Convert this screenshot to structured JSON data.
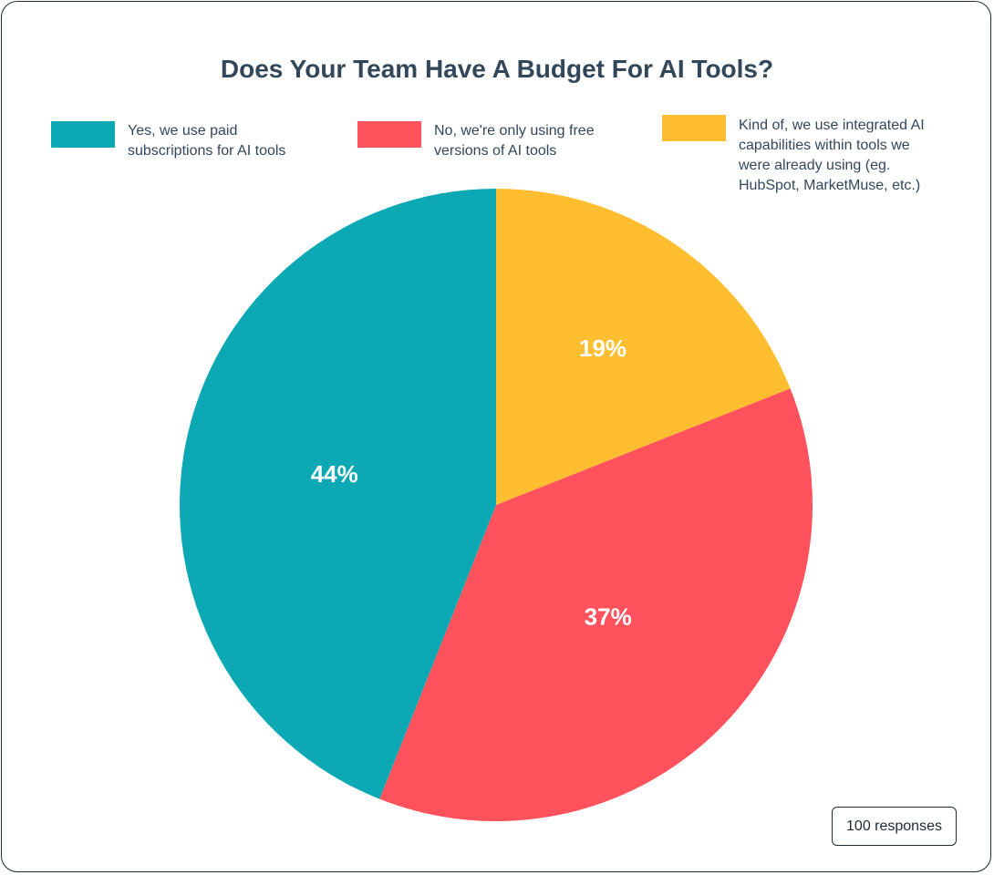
{
  "chart_data": {
    "type": "pie",
    "title": "Does Your Team Have A Budget For AI Tools?",
    "legend_position": "top",
    "slices": [
      {
        "name": "Kind of, we use integrated AI capabilities within tools we were already using (eg. HubSpot, MarketMuse, etc.)",
        "value": 19,
        "label": "19%",
        "color": "#ffbe2f"
      },
      {
        "name": "No, we're only using free versions of AI tools",
        "value": 37,
        "label": "37%",
        "color": "#ff525d"
      },
      {
        "name": "Yes, we use paid subscriptions for AI tools",
        "value": 44,
        "label": "44%",
        "color": "#0ca9b5"
      }
    ],
    "legend": [
      {
        "label": "Yes, we use paid subscriptions for AI tools",
        "color": "#0ca9b5"
      },
      {
        "label": "No, we're only using free versions of AI tools",
        "color": "#ff525d"
      },
      {
        "label": "Kind of, we use integrated AI capabilities within tools we were already using (eg. HubSpot, MarketMuse, etc.)",
        "color": "#ffbe2f"
      }
    ],
    "footnote": "100 responses"
  }
}
